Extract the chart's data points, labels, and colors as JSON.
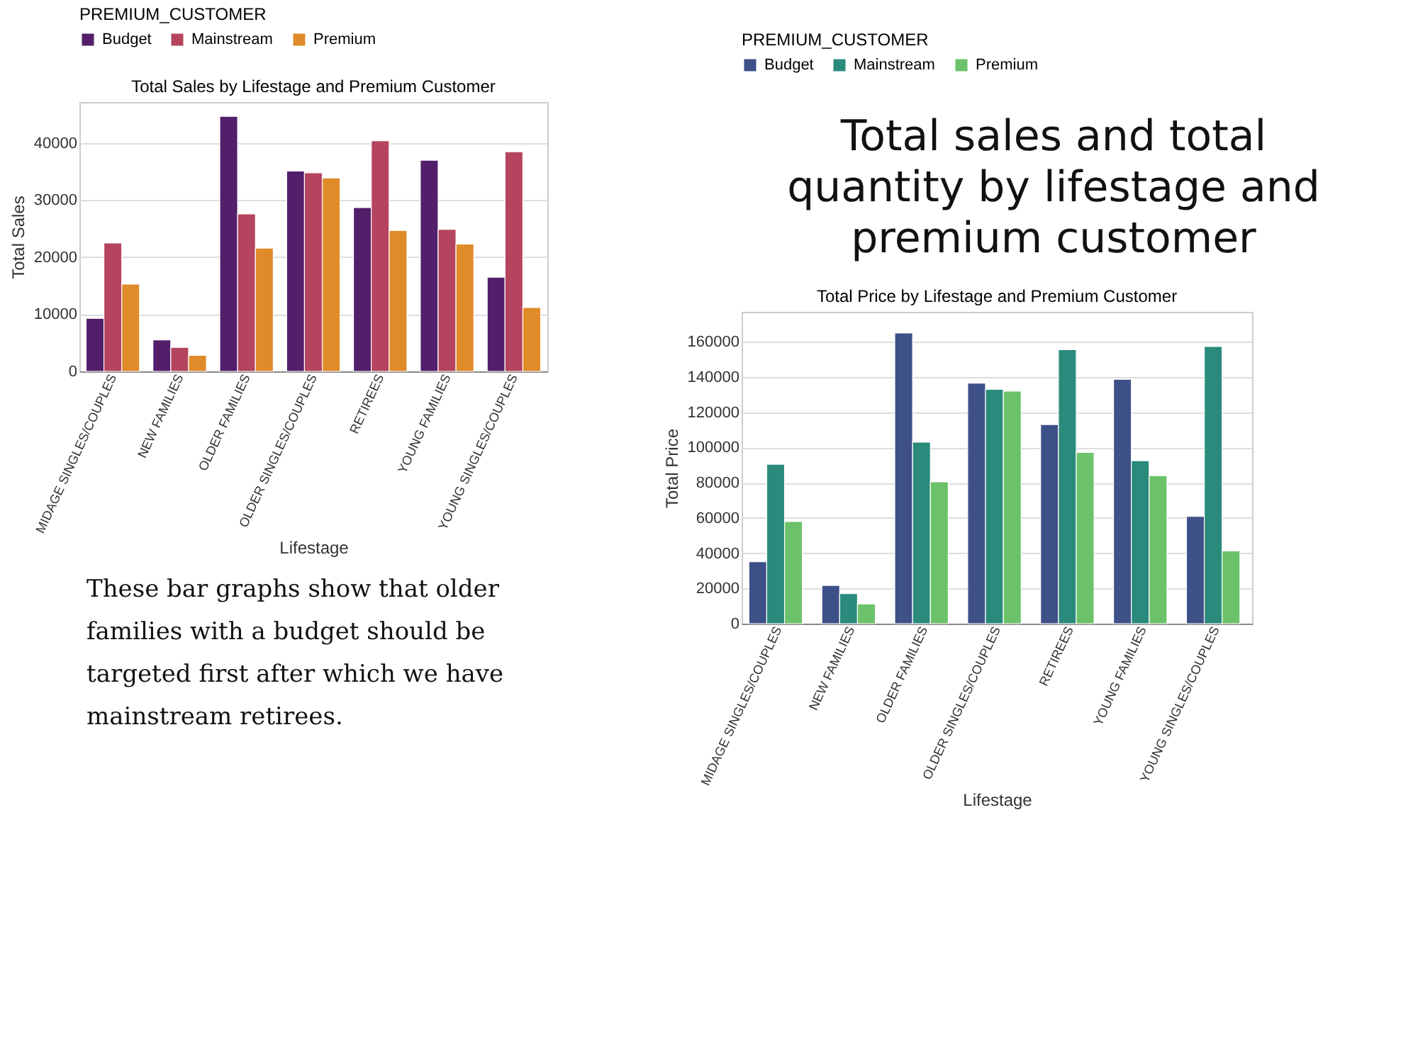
{
  "chart_data": [
    {
      "type": "bar",
      "title": "Total Sales by Lifestage and Premium Customer",
      "xlabel": "Lifestage",
      "ylabel": "Total Sales",
      "legend_title": "PREMIUM_CUSTOMER",
      "legend": "top",
      "grid": "y",
      "categories": [
        "MIDAGE SINGLES/COUPLES",
        "NEW FAMILIES",
        "OLDER FAMILIES",
        "OLDER SINGLES/COUPLES",
        "RETIREES",
        "YOUNG FAMILIES",
        "YOUNG SINGLES/COUPLES"
      ],
      "ylim": [
        0,
        47200
      ],
      "yticks": [
        0,
        10000,
        20000,
        30000,
        40000
      ],
      "series": [
        {
          "name": "Budget",
          "color": "#531e6a",
          "values": [
            9300,
            5500,
            44700,
            35100,
            28700,
            37000,
            16500
          ]
        },
        {
          "name": "Mainstream",
          "color": "#b5445f",
          "values": [
            22500,
            4200,
            27600,
            34800,
            40400,
            24900,
            38500
          ]
        },
        {
          "name": "Premium",
          "color": "#e08b2a",
          "values": [
            15300,
            2800,
            21600,
            33900,
            24700,
            22300,
            11200
          ]
        }
      ],
      "annotations": [
        "Total sales and total quantity by lifestage and premium customer",
        "These bar graphs show that older families with a budget should be targeted first after which we have mainstream retirees."
      ]
    },
    {
      "type": "bar",
      "title": "Total Price by Lifestage and Premium Customer",
      "xlabel": "Lifestage",
      "ylabel": "Total Price",
      "legend_title": "PREMIUM_CUSTOMER",
      "legend": "top",
      "grid": "y",
      "categories": [
        "MIDAGE SINGLES/COUPLES",
        "NEW FAMILIES",
        "OLDER FAMILIES",
        "OLDER SINGLES/COUPLES",
        "RETIREES",
        "YOUNG FAMILIES",
        "YOUNG SINGLES/COUPLES"
      ],
      "ylim": [
        0,
        177000
      ],
      "yticks": [
        0,
        20000,
        40000,
        60000,
        80000,
        100000,
        120000,
        140000,
        160000
      ],
      "series": [
        {
          "name": "Budget",
          "color": "#3e5088",
          "values": [
            35100,
            21700,
            165000,
            136500,
            113000,
            138700,
            60900
          ]
        },
        {
          "name": "Mainstream",
          "color": "#2a8a7c",
          "values": [
            90500,
            17000,
            103000,
            133000,
            155500,
            92500,
            157300
          ]
        },
        {
          "name": "Premium",
          "color": "#6cc26a",
          "values": [
            58000,
            11200,
            80500,
            132000,
            97200,
            84000,
            41300
          ]
        }
      ]
    }
  ]
}
